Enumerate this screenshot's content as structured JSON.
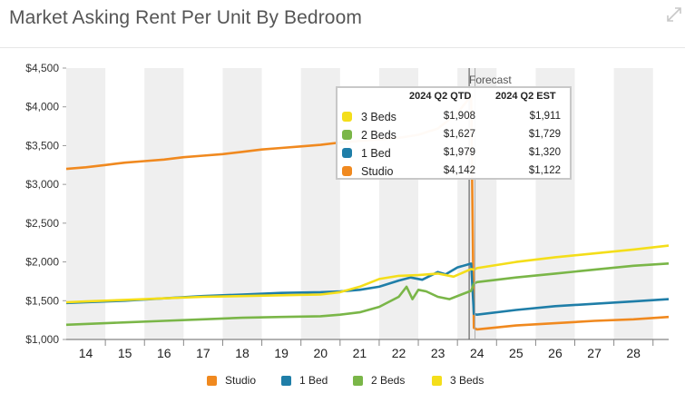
{
  "header": {
    "title": "Market Asking Rent Per Unit By Bedroom"
  },
  "chart_data": {
    "type": "line",
    "title": "Market Asking Rent Per Unit By Bedroom",
    "xlabel": "",
    "ylabel": "",
    "x_ticks": [
      "14",
      "15",
      "16",
      "17",
      "18",
      "19",
      "20",
      "21",
      "22",
      "23",
      "24",
      "25",
      "26",
      "27",
      "28"
    ],
    "xlim": [
      2013.5,
      2028.9
    ],
    "ylim": [
      1000,
      4500
    ],
    "y_ticks": [
      "$1,000",
      "$1,500",
      "$2,000",
      "$2,500",
      "$3,000",
      "$3,500",
      "$4,000",
      "$4,500"
    ],
    "y_tick_values": [
      1000,
      1500,
      2000,
      2500,
      3000,
      3500,
      4000,
      4500
    ],
    "grid": "vertical-bands",
    "legend_position": "bottom-center",
    "series": [
      {
        "name": "Studio",
        "color": "#f0891f",
        "x": [
          2013.5,
          2014,
          2014.5,
          2015,
          2015.5,
          2016,
          2016.5,
          2017,
          2017.5,
          2018,
          2018.5,
          2019,
          2019.5,
          2020,
          2020.5,
          2021,
          2021.5,
          2022,
          2022.5,
          2023,
          2023.5,
          2023.85,
          2023.92,
          2024,
          2025,
          2026,
          2027,
          2028,
          2028.9
        ],
        "y": [
          3200,
          3220,
          3250,
          3280,
          3300,
          3320,
          3350,
          3370,
          3390,
          3420,
          3450,
          3470,
          3490,
          3510,
          3540,
          3560,
          3580,
          3600,
          3640,
          3720,
          3920,
          4142,
          1150,
          1130,
          1180,
          1210,
          1240,
          1260,
          1290
        ]
      },
      {
        "name": "1 Bed",
        "color": "#1f7ea8",
        "x": [
          2013.5,
          2014,
          2015,
          2016,
          2017,
          2018,
          2019,
          2020,
          2020.5,
          2021,
          2021.5,
          2022,
          2022.3,
          2022.6,
          2023,
          2023.2,
          2023.5,
          2023.85,
          2023.92,
          2024,
          2025,
          2026,
          2027,
          2028,
          2028.9
        ],
        "y": [
          1470,
          1480,
          1500,
          1530,
          1560,
          1580,
          1600,
          1610,
          1620,
          1640,
          1680,
          1760,
          1800,
          1770,
          1870,
          1840,
          1930,
          1979,
          1330,
          1320,
          1380,
          1430,
          1460,
          1490,
          1520
        ]
      },
      {
        "name": "2 Beds",
        "color": "#7ab648",
        "x": [
          2013.5,
          2014,
          2015,
          2016,
          2017,
          2018,
          2019,
          2020,
          2020.5,
          2021,
          2021.5,
          2022,
          2022.2,
          2022.35,
          2022.5,
          2022.7,
          2023,
          2023.3,
          2023.6,
          2023.85,
          2023.92,
          2024,
          2025,
          2026,
          2027,
          2028,
          2028.9
        ],
        "y": [
          1190,
          1200,
          1220,
          1240,
          1260,
          1280,
          1290,
          1300,
          1320,
          1350,
          1420,
          1550,
          1680,
          1520,
          1640,
          1620,
          1550,
          1520,
          1580,
          1627,
          1720,
          1740,
          1800,
          1850,
          1900,
          1950,
          1980
        ]
      },
      {
        "name": "3 Beds",
        "color": "#f4de1a",
        "x": [
          2013.5,
          2014,
          2015,
          2016,
          2017,
          2018,
          2019,
          2020,
          2020.5,
          2021,
          2021.5,
          2022,
          2022.5,
          2023,
          2023.4,
          2023.85,
          2023.92,
          2024,
          2025,
          2026,
          2027,
          2028,
          2028.9
        ],
        "y": [
          1480,
          1490,
          1510,
          1530,
          1550,
          1560,
          1570,
          1580,
          1610,
          1680,
          1780,
          1820,
          1830,
          1850,
          1810,
          1908,
          1900,
          1920,
          2000,
          2060,
          2110,
          2160,
          2210
        ]
      }
    ],
    "forecast_line_x": 2023.8,
    "forecast_label": "Forecast"
  },
  "tooltip": {
    "col1": "2024 Q2 QTD",
    "col2": "2024 Q2 EST",
    "rows": [
      {
        "name": "3 Beds",
        "color": "#f4de1a",
        "v1": "$1,908",
        "v2": "$1,911"
      },
      {
        "name": "2 Beds",
        "color": "#7ab648",
        "v1": "$1,627",
        "v2": "$1,729"
      },
      {
        "name": "1 Bed",
        "color": "#1f7ea8",
        "v1": "$1,979",
        "v2": "$1,320"
      },
      {
        "name": "Studio",
        "color": "#f0891f",
        "v1": "$4,142",
        "v2": "$1,122"
      }
    ]
  },
  "legend": {
    "items": [
      {
        "name": "Studio",
        "color": "#f0891f"
      },
      {
        "name": "1 Bed",
        "color": "#1f7ea8"
      },
      {
        "name": "2 Beds",
        "color": "#7ab648"
      },
      {
        "name": "3 Beds",
        "color": "#f4de1a"
      }
    ]
  },
  "icons": {
    "expand": "expand-icon"
  }
}
